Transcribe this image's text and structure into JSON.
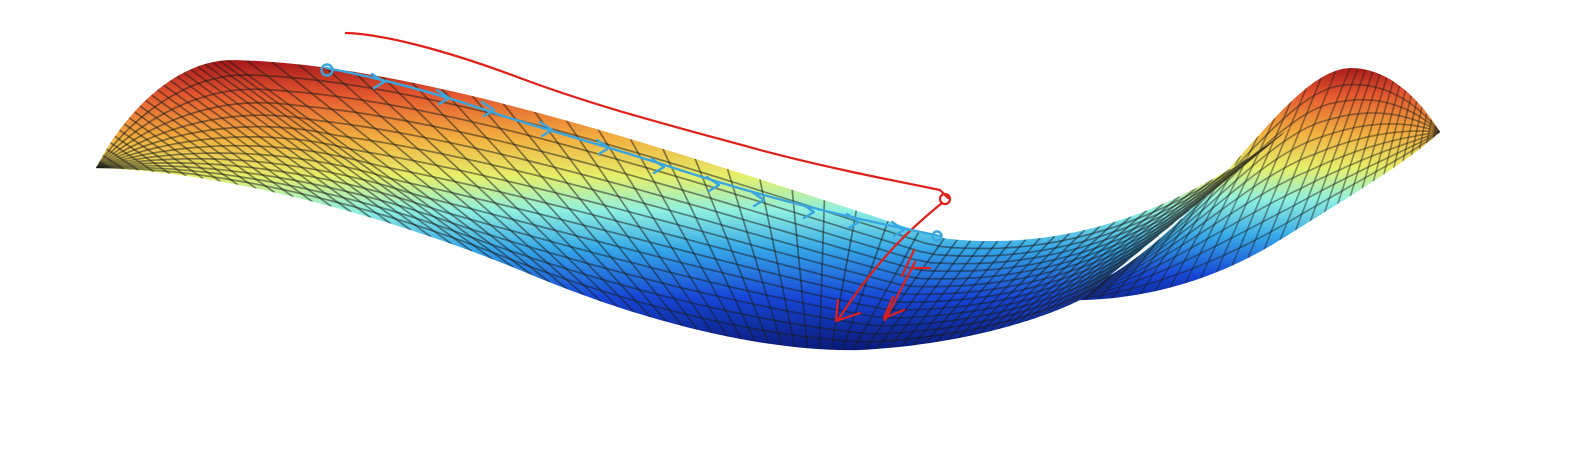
{
  "figure": {
    "surface_colormap": [
      "#0a1a7a",
      "#1646d6",
      "#36a8e8",
      "#8ef0e0",
      "#e6ef6a",
      "#f2b040",
      "#e4572e",
      "#a5161a"
    ],
    "mesh_line_color": "#1a1a1a",
    "annotations": {
      "blue_path": {
        "color": "#3aa6e0",
        "description_label": ""
      },
      "red_path": {
        "color": "#e0201a",
        "description_label": ""
      }
    }
  }
}
